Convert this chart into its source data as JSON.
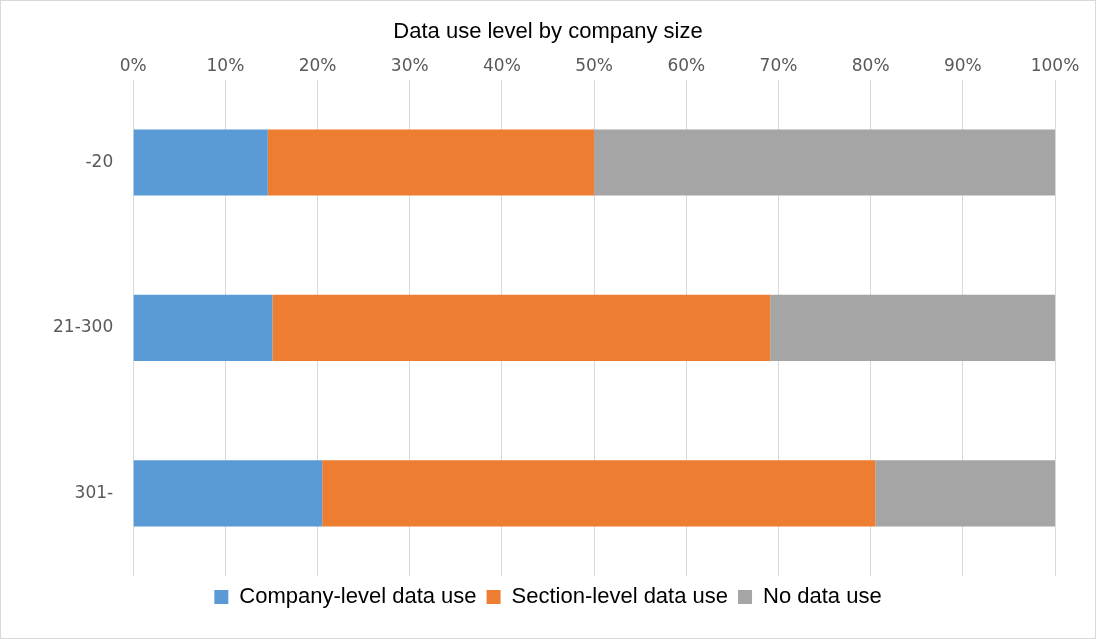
{
  "chart_data": {
    "type": "bar",
    "title": "Data use level by company size",
    "orientation": "horizontal",
    "stacked": true,
    "categories": [
      "-20",
      "21-300",
      "301-"
    ],
    "series": [
      {
        "name": "Company-level data use",
        "color": "#5b9bd5",
        "values": [
          14.6,
          15.1,
          20.5
        ]
      },
      {
        "name": "Section-level data use",
        "color": "#ed7d31",
        "values": [
          35.4,
          54,
          60
        ]
      },
      {
        "name": "No data use",
        "color": "#a5a5a5",
        "values": [
          50,
          30.9,
          19.5
        ]
      }
    ],
    "xlim": [
      0,
      100
    ],
    "xticks": [
      {
        "value": 0,
        "label": "0%"
      },
      {
        "value": 10,
        "label": "10%"
      },
      {
        "value": 20,
        "label": "20%"
      },
      {
        "value": 30,
        "label": "30%"
      },
      {
        "value": 40,
        "label": "40%"
      },
      {
        "value": 50,
        "label": "50%"
      },
      {
        "value": 60,
        "label": "60%"
      },
      {
        "value": 70,
        "label": "70%"
      },
      {
        "value": 80,
        "label": "80%"
      },
      {
        "value": 90,
        "label": "90%"
      },
      {
        "value": 100,
        "label": "100%"
      }
    ],
    "grid": "x",
    "legend": "bottom"
  }
}
